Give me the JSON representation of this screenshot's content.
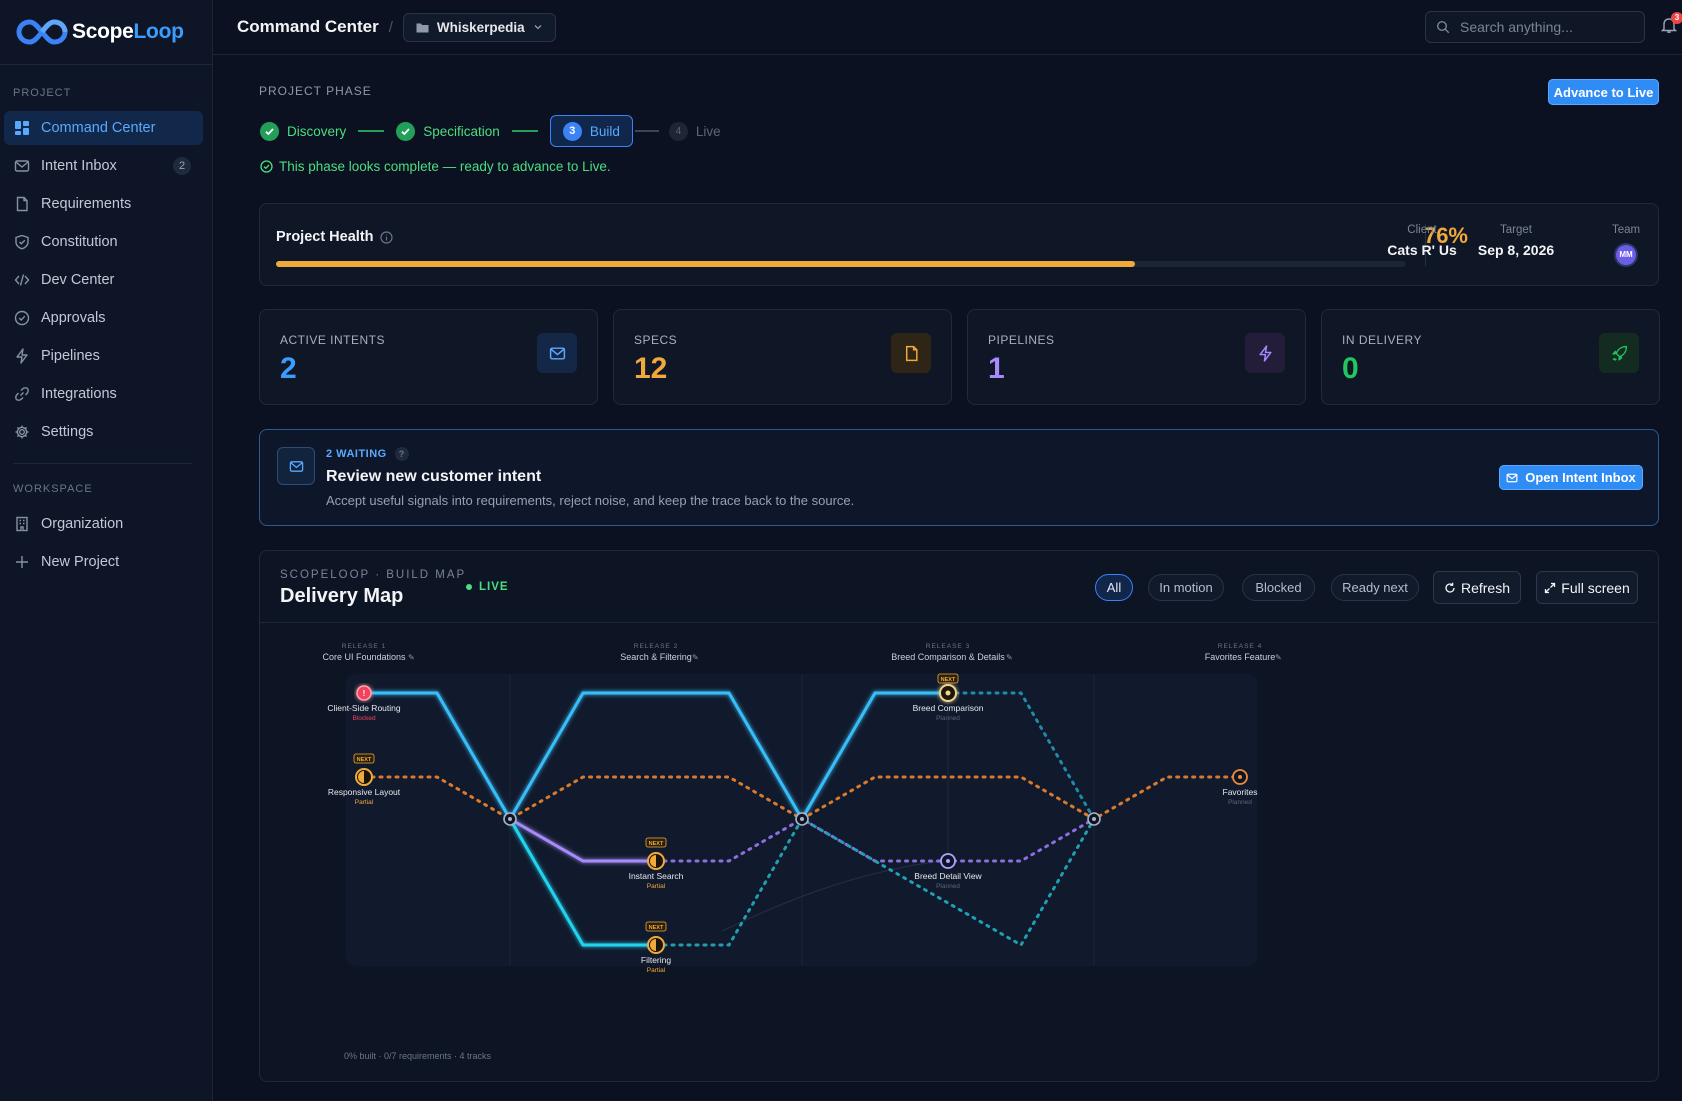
{
  "app": {
    "logo_part1": "Scope",
    "logo_part2": "Loop",
    "accent": "#3b9cff"
  },
  "sidebar": {
    "project_label": "PROJECT",
    "workspace_label": "WORKSPACE",
    "items": [
      {
        "label": "Command Center",
        "icon": "grid-icon",
        "active": true
      },
      {
        "label": "Intent Inbox",
        "icon": "mail-icon",
        "badge": "2"
      },
      {
        "label": "Requirements",
        "icon": "file-icon"
      },
      {
        "label": "Constitution",
        "icon": "shield-icon"
      },
      {
        "label": "Dev Center",
        "icon": "code-icon"
      },
      {
        "label": "Approvals",
        "icon": "check-circle-icon"
      },
      {
        "label": "Pipelines",
        "icon": "bolt-icon"
      },
      {
        "label": "Integrations",
        "icon": "link-icon"
      },
      {
        "label": "Settings",
        "icon": "gear-icon"
      }
    ],
    "workspace_items": [
      {
        "label": "Organization",
        "icon": "building-icon"
      },
      {
        "label": "New Project",
        "icon": "plus-icon"
      }
    ]
  },
  "header": {
    "title": "Command Center",
    "separator": "/",
    "project": "Whiskerpedia",
    "search_placeholder": "Search anything...",
    "notifications": "3"
  },
  "phase": {
    "label": "PROJECT PHASE",
    "advance_label": "Advance to Live",
    "steps": [
      {
        "label": "Discovery",
        "state": "done"
      },
      {
        "label": "Specification",
        "state": "done"
      },
      {
        "number": "3",
        "label": "Build",
        "state": "current"
      },
      {
        "number": "4",
        "label": "Live",
        "state": "future"
      }
    ],
    "note": "This phase looks complete — ready to advance to Live."
  },
  "health": {
    "title": "Project Health",
    "percent_text": "76%",
    "percent": 76,
    "client_label": "Client",
    "client": "Cats R' Us",
    "target_label": "Target",
    "target": "Sep 8, 2026",
    "team_label": "Team",
    "team_initials": "MM",
    "bar_color": "#f0a93a"
  },
  "stats": [
    {
      "label": "ACTIVE INTENTS",
      "value": "2",
      "color": "#3b9cff",
      "icon": "mail-icon"
    },
    {
      "label": "SPECS",
      "value": "12",
      "color": "#f0a93a",
      "icon": "file-icon"
    },
    {
      "label": "PIPELINES",
      "value": "1",
      "color": "#a78bfa",
      "icon": "bolt-icon"
    },
    {
      "label": "IN DELIVERY",
      "value": "0",
      "color": "#22c55e",
      "icon": "rocket-icon"
    }
  ],
  "intent": {
    "waiting": "2 WAITING",
    "help": "?",
    "title": "Review new customer intent",
    "description": "Accept useful signals into requirements, reject noise, and keep the trace back to the source.",
    "button": "Open Intent Inbox"
  },
  "map": {
    "kicker": "SCOPELOOP · BUILD MAP",
    "title": "Delivery Map",
    "live": "LIVE",
    "filters": [
      {
        "label": "All",
        "active": true
      },
      {
        "label": "In motion"
      },
      {
        "label": "Blocked"
      },
      {
        "label": "Ready next"
      }
    ],
    "refresh": "Refresh",
    "fullscreen": "Full screen",
    "releases": [
      {
        "kicker": "RELEASE 1",
        "name": "Core UI Foundations"
      },
      {
        "kicker": "RELEASE 2",
        "name": "Search & Filtering"
      },
      {
        "kicker": "RELEASE 3",
        "name": "Breed Comparison & Details"
      },
      {
        "kicker": "RELEASE 4",
        "name": "Favorites Feature"
      }
    ],
    "nodes": [
      {
        "name": "Client-Side Routing",
        "status": "Blocked"
      },
      {
        "name": "Responsive Layout",
        "status": "Partial",
        "tag": "NEXT"
      },
      {
        "name": "Instant Search",
        "status": "Partial",
        "tag": "NEXT"
      },
      {
        "name": "Filtering",
        "status": "Partial",
        "tag": "NEXT"
      },
      {
        "name": "Breed Comparison",
        "status": "Planned",
        "tag": "NEXT"
      },
      {
        "name": "Breed Detail View",
        "status": "Planned"
      },
      {
        "name": "Favorites",
        "status": "Planned"
      }
    ],
    "footer": "0% built · 0/7 requirements · 4 tracks"
  }
}
